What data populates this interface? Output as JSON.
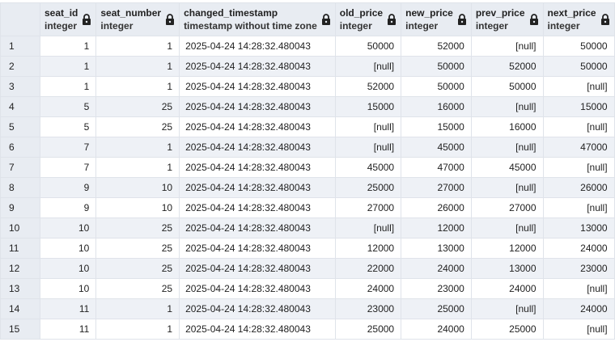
{
  "columns": [
    {
      "name": "seat_id",
      "type": "integer",
      "align": "num"
    },
    {
      "name": "seat_number",
      "type": "integer",
      "align": "num"
    },
    {
      "name": "changed_timestamp",
      "type": "timestamp without time zone",
      "align": "ts"
    },
    {
      "name": "old_price",
      "type": "integer",
      "align": "num"
    },
    {
      "name": "new_price",
      "type": "integer",
      "align": "num"
    },
    {
      "name": "prev_price",
      "type": "integer",
      "align": "num"
    },
    {
      "name": "next_price",
      "type": "integer",
      "align": "num"
    }
  ],
  "rows": [
    {
      "n": "1",
      "cells": [
        "1",
        "1",
        "2025-04-24 14:28:32.480043",
        "50000",
        "52000",
        "[null]",
        "50000"
      ]
    },
    {
      "n": "2",
      "cells": [
        "1",
        "1",
        "2025-04-24 14:28:32.480043",
        "[null]",
        "50000",
        "52000",
        "50000"
      ]
    },
    {
      "n": "3",
      "cells": [
        "1",
        "1",
        "2025-04-24 14:28:32.480043",
        "52000",
        "50000",
        "50000",
        "[null]"
      ]
    },
    {
      "n": "4",
      "cells": [
        "5",
        "25",
        "2025-04-24 14:28:32.480043",
        "15000",
        "16000",
        "[null]",
        "15000"
      ]
    },
    {
      "n": "5",
      "cells": [
        "5",
        "25",
        "2025-04-24 14:28:32.480043",
        "[null]",
        "15000",
        "16000",
        "[null]"
      ]
    },
    {
      "n": "6",
      "cells": [
        "7",
        "1",
        "2025-04-24 14:28:32.480043",
        "[null]",
        "45000",
        "[null]",
        "47000"
      ]
    },
    {
      "n": "7",
      "cells": [
        "7",
        "1",
        "2025-04-24 14:28:32.480043",
        "45000",
        "47000",
        "45000",
        "[null]"
      ]
    },
    {
      "n": "8",
      "cells": [
        "9",
        "10",
        "2025-04-24 14:28:32.480043",
        "25000",
        "27000",
        "[null]",
        "26000"
      ]
    },
    {
      "n": "9",
      "cells": [
        "9",
        "10",
        "2025-04-24 14:28:32.480043",
        "27000",
        "26000",
        "27000",
        "[null]"
      ]
    },
    {
      "n": "10",
      "cells": [
        "10",
        "25",
        "2025-04-24 14:28:32.480043",
        "[null]",
        "12000",
        "[null]",
        "13000"
      ]
    },
    {
      "n": "11",
      "cells": [
        "10",
        "25",
        "2025-04-24 14:28:32.480043",
        "12000",
        "13000",
        "12000",
        "24000"
      ]
    },
    {
      "n": "12",
      "cells": [
        "10",
        "25",
        "2025-04-24 14:28:32.480043",
        "22000",
        "24000",
        "13000",
        "23000"
      ]
    },
    {
      "n": "13",
      "cells": [
        "10",
        "25",
        "2025-04-24 14:28:32.480043",
        "24000",
        "23000",
        "24000",
        "[null]"
      ]
    },
    {
      "n": "14",
      "cells": [
        "11",
        "1",
        "2025-04-24 14:28:32.480043",
        "23000",
        "25000",
        "[null]",
        "24000"
      ]
    },
    {
      "n": "15",
      "cells": [
        "11",
        "1",
        "2025-04-24 14:28:32.480043",
        "25000",
        "24000",
        "25000",
        "[null]"
      ]
    }
  ],
  "icons": {
    "column_header": "lock-icon"
  },
  "colors": {
    "header_bg": "#e8ecf2",
    "row_alt_bg": "#eef1f6",
    "grid_line": "#dfe3ea"
  }
}
